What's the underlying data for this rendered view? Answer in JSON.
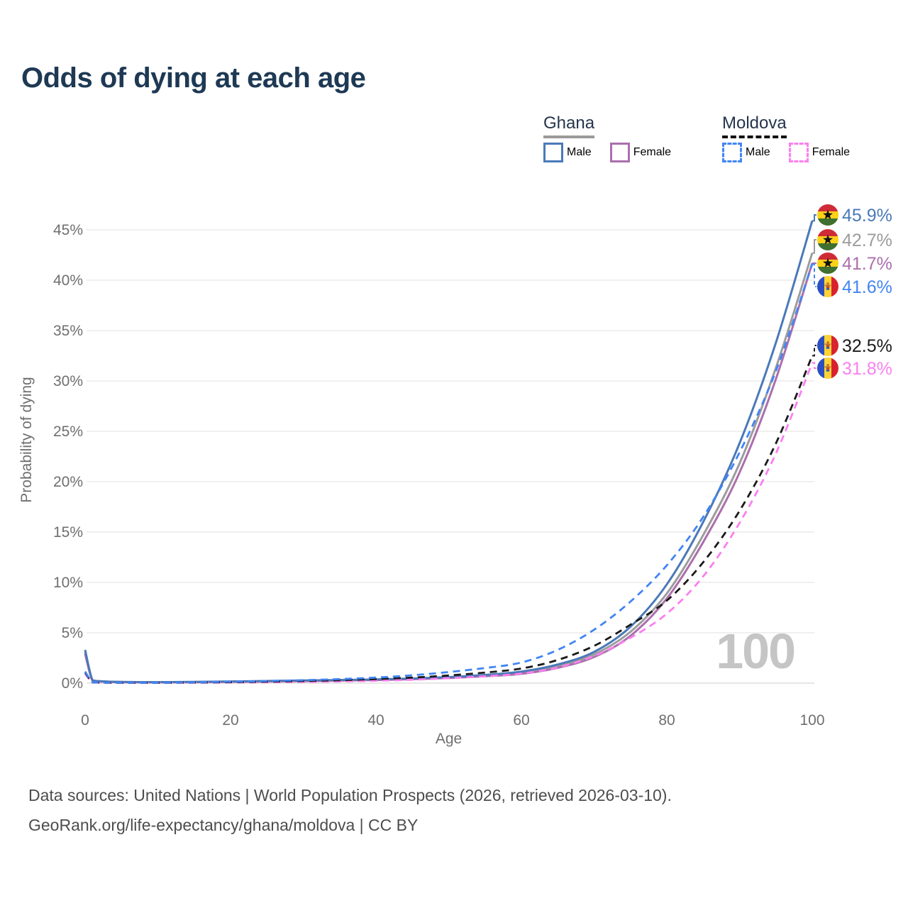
{
  "title": "Odds of dying at each age",
  "legend": {
    "groups": [
      {
        "label": "Ghana",
        "underline": "solid",
        "underline_color": "#9a9a9a",
        "items": [
          {
            "label": "Male",
            "color": "#4a79b8",
            "dashed": false
          },
          {
            "label": "Female",
            "color": "#ab6fad",
            "dashed": false
          }
        ]
      },
      {
        "label": "Moldova",
        "underline": "dashed",
        "underline_color": "#111111",
        "items": [
          {
            "label": "Male",
            "color": "#4285f4",
            "dashed": true
          },
          {
            "label": "Female",
            "color": "#fb7ff0",
            "dashed": true
          }
        ]
      }
    ]
  },
  "watermark": "100",
  "footer": {
    "line1": "Data sources: United Nations | World Population Prospects (2026, retrieved 2026-03-10).",
    "line2": "GeoRank.org/life-expectancy/ghana/moldova | CC BY"
  },
  "chart_data": {
    "type": "line",
    "title": "Odds of dying at each age",
    "xlabel": "Age",
    "ylabel": "Probability of dying",
    "xlim": [
      0,
      100
    ],
    "ylim_percent": [
      0,
      47
    ],
    "x_ticks": [
      0,
      20,
      40,
      60,
      80,
      100
    ],
    "y_ticks": [
      "0%",
      "5%",
      "10%",
      "15%",
      "20%",
      "25%",
      "30%",
      "35%",
      "40%",
      "45%"
    ],
    "grid": true,
    "legend_position": "top-right",
    "series": [
      {
        "name": "ghana-male",
        "country": "Ghana",
        "sex": "Male",
        "color": "#4a79b8",
        "dashed": false,
        "flag": "ghana",
        "end_label": "45.9%",
        "end_value": 45.9,
        "points": [
          [
            0,
            3.3
          ],
          [
            1,
            0.3
          ],
          [
            2,
            0.2
          ],
          [
            5,
            0.12
          ],
          [
            10,
            0.1
          ],
          [
            15,
            0.12
          ],
          [
            20,
            0.17
          ],
          [
            25,
            0.21
          ],
          [
            30,
            0.26
          ],
          [
            35,
            0.31
          ],
          [
            40,
            0.37
          ],
          [
            45,
            0.46
          ],
          [
            50,
            0.6
          ],
          [
            55,
            0.82
          ],
          [
            60,
            1.15
          ],
          [
            65,
            1.85
          ],
          [
            70,
            3.1
          ],
          [
            75,
            5.6
          ],
          [
            80,
            9.8
          ],
          [
            85,
            16.0
          ],
          [
            90,
            23.8
          ],
          [
            95,
            33.8
          ],
          [
            100,
            45.9
          ]
        ]
      },
      {
        "name": "ghana-both-sexes",
        "country": "Ghana",
        "sex": "Both sexes",
        "color": "#9c9c9c",
        "dashed": false,
        "flag": "ghana",
        "end_label": "42.7%",
        "end_value": 42.7,
        "points": [
          [
            0,
            3.1
          ],
          [
            1,
            0.27
          ],
          [
            2,
            0.18
          ],
          [
            5,
            0.11
          ],
          [
            10,
            0.09
          ],
          [
            15,
            0.11
          ],
          [
            20,
            0.15
          ],
          [
            25,
            0.19
          ],
          [
            30,
            0.24
          ],
          [
            35,
            0.29
          ],
          [
            40,
            0.35
          ],
          [
            45,
            0.43
          ],
          [
            50,
            0.56
          ],
          [
            55,
            0.75
          ],
          [
            60,
            1.03
          ],
          [
            65,
            1.68
          ],
          [
            70,
            2.85
          ],
          [
            75,
            5.1
          ],
          [
            80,
            8.9
          ],
          [
            85,
            14.7
          ],
          [
            90,
            21.8
          ],
          [
            95,
            31.3
          ],
          [
            100,
            42.7
          ]
        ]
      },
      {
        "name": "ghana-female",
        "country": "Ghana",
        "sex": "Female",
        "color": "#ab6fad",
        "dashed": false,
        "flag": "ghana",
        "end_label": "41.7%",
        "end_value": 41.7,
        "points": [
          [
            0,
            2.9
          ],
          [
            1,
            0.24
          ],
          [
            2,
            0.16
          ],
          [
            5,
            0.1
          ],
          [
            10,
            0.08
          ],
          [
            15,
            0.09
          ],
          [
            20,
            0.12
          ],
          [
            25,
            0.16
          ],
          [
            30,
            0.2
          ],
          [
            35,
            0.25
          ],
          [
            40,
            0.31
          ],
          [
            45,
            0.39
          ],
          [
            50,
            0.51
          ],
          [
            55,
            0.68
          ],
          [
            60,
            0.92
          ],
          [
            65,
            1.52
          ],
          [
            70,
            2.6
          ],
          [
            75,
            4.7
          ],
          [
            80,
            8.4
          ],
          [
            85,
            14.0
          ],
          [
            90,
            20.9
          ],
          [
            95,
            30.2
          ],
          [
            100,
            41.7
          ]
        ]
      },
      {
        "name": "moldova-male",
        "country": "Moldova",
        "sex": "Male",
        "color": "#4285f4",
        "dashed": true,
        "flag": "moldova",
        "end_label": "41.6%",
        "end_value": 41.6,
        "points": [
          [
            0,
            1.15
          ],
          [
            1,
            0.09
          ],
          [
            2,
            0.06
          ],
          [
            5,
            0.04
          ],
          [
            10,
            0.04
          ],
          [
            15,
            0.08
          ],
          [
            20,
            0.14
          ],
          [
            25,
            0.21
          ],
          [
            30,
            0.29
          ],
          [
            35,
            0.4
          ],
          [
            40,
            0.55
          ],
          [
            45,
            0.78
          ],
          [
            50,
            1.1
          ],
          [
            55,
            1.5
          ],
          [
            60,
            2.05
          ],
          [
            65,
            3.3
          ],
          [
            70,
            5.3
          ],
          [
            75,
            8.1
          ],
          [
            80,
            11.7
          ],
          [
            85,
            16.5
          ],
          [
            90,
            22.9
          ],
          [
            95,
            31.0
          ],
          [
            100,
            41.6
          ]
        ]
      },
      {
        "name": "moldova-both-sexes",
        "country": "Moldova",
        "sex": "Both sexes",
        "color": "#1a1a1a",
        "dashed": true,
        "flag": "moldova",
        "end_label": "32.5%",
        "end_value": 32.5,
        "points": [
          [
            0,
            1.05
          ],
          [
            1,
            0.08
          ],
          [
            2,
            0.055
          ],
          [
            5,
            0.035
          ],
          [
            10,
            0.035
          ],
          [
            15,
            0.06
          ],
          [
            20,
            0.1
          ],
          [
            25,
            0.15
          ],
          [
            30,
            0.21
          ],
          [
            35,
            0.29
          ],
          [
            40,
            0.4
          ],
          [
            45,
            0.55
          ],
          [
            50,
            0.76
          ],
          [
            55,
            1.05
          ],
          [
            60,
            1.45
          ],
          [
            65,
            2.3
          ],
          [
            70,
            3.7
          ],
          [
            75,
            5.8
          ],
          [
            80,
            8.2
          ],
          [
            85,
            12.0
          ],
          [
            90,
            17.1
          ],
          [
            95,
            23.8
          ],
          [
            100,
            32.5
          ]
        ]
      },
      {
        "name": "moldova-female",
        "country": "Moldova",
        "sex": "Female",
        "color": "#fb7ff0",
        "dashed": true,
        "flag": "moldova",
        "end_label": "31.8%",
        "end_value": 31.8,
        "points": [
          [
            0,
            0.95
          ],
          [
            1,
            0.07
          ],
          [
            2,
            0.05
          ],
          [
            5,
            0.03
          ],
          [
            10,
            0.03
          ],
          [
            15,
            0.04
          ],
          [
            20,
            0.06
          ],
          [
            25,
            0.09
          ],
          [
            30,
            0.12
          ],
          [
            35,
            0.17
          ],
          [
            40,
            0.24
          ],
          [
            45,
            0.34
          ],
          [
            50,
            0.49
          ],
          [
            55,
            0.68
          ],
          [
            60,
            0.95
          ],
          [
            65,
            1.55
          ],
          [
            70,
            2.7
          ],
          [
            75,
            4.5
          ],
          [
            80,
            6.9
          ],
          [
            85,
            10.6
          ],
          [
            90,
            15.9
          ],
          [
            95,
            22.8
          ],
          [
            100,
            31.8
          ]
        ]
      }
    ],
    "flag_colors": {
      "ghana": {
        "red": "#cf2b36",
        "gold": "#fcd116",
        "green": "#3f7030",
        "star": "#111111"
      },
      "moldova": {
        "blue": "#2b4fc0",
        "yellow": "#ffd335",
        "red": "#d8232f",
        "emblem": "#c0742c",
        "shield_red": "#c4452c",
        "shield_blue": "#3b55b0"
      }
    }
  }
}
